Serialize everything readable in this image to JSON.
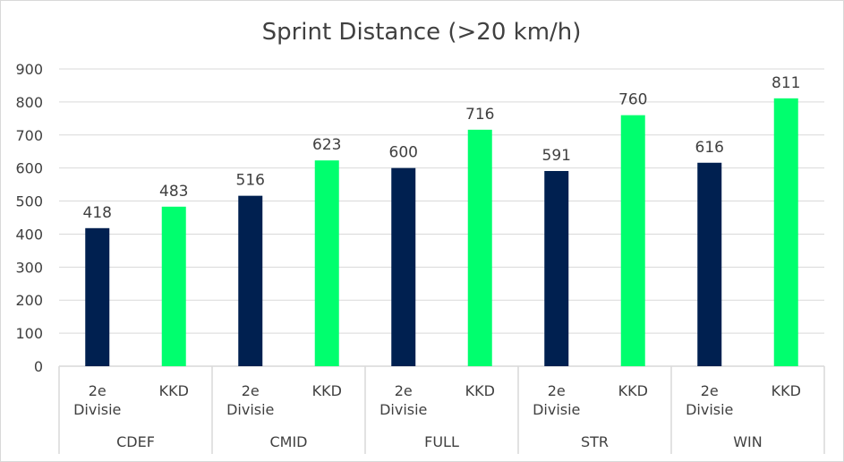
{
  "chart_data": {
    "type": "bar",
    "title": "Sprint Distance (>20 km/h)",
    "groups": [
      "CDEF",
      "CMID",
      "FULL",
      "STR",
      "WIN"
    ],
    "subcategories": [
      "2e Divisie",
      "KKD"
    ],
    "series": [
      {
        "name": "2e Divisie",
        "color": "#002050",
        "values": [
          418,
          516,
          600,
          591,
          616
        ]
      },
      {
        "name": "KKD",
        "color": "#00FF6E",
        "values": [
          483,
          623,
          716,
          760,
          811
        ]
      }
    ],
    "ylim": [
      0,
      900
    ],
    "yticks": [
      0,
      100,
      200,
      300,
      400,
      500,
      600,
      700,
      800,
      900
    ],
    "grid": true,
    "data_labels": true,
    "legend": "none"
  }
}
